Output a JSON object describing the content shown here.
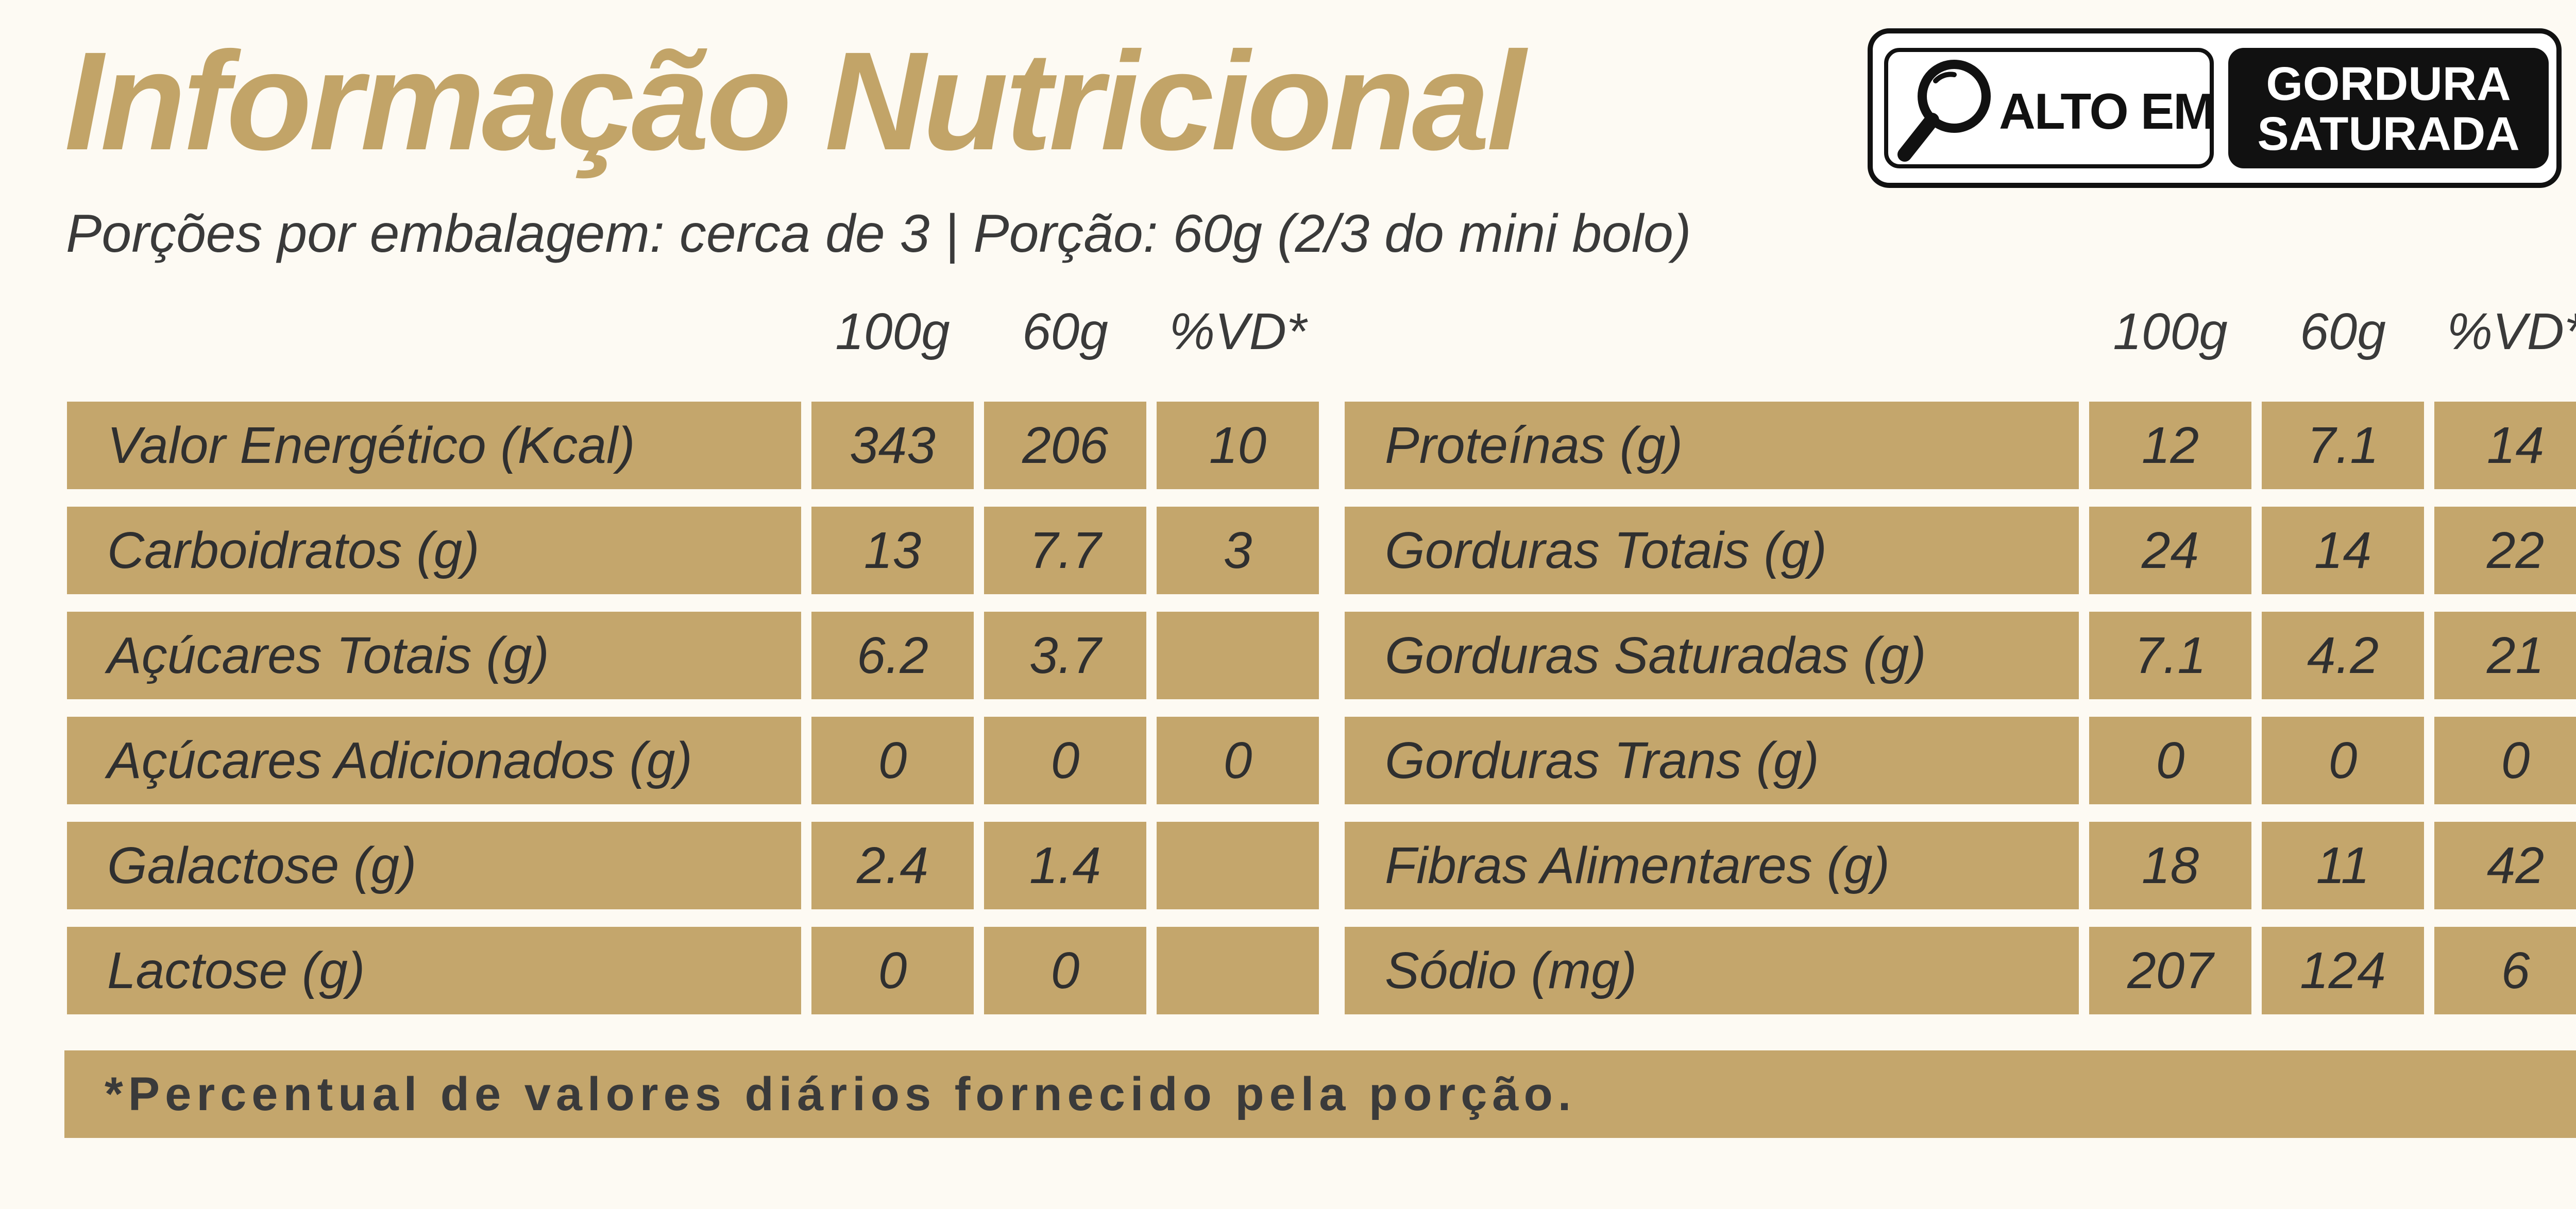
{
  "title": "Informação Nutricional",
  "subtitle": "Porções por embalagem: cerca de 3 | Porção: 60g (2/3 do mini bolo)",
  "seal": {
    "left_text": "ALTO EM",
    "right_line1": "GORDURA",
    "right_line2": "SATURADA",
    "icon": "magnifier-icon"
  },
  "headers": {
    "left": [
      "100g",
      "60g",
      "%VD*"
    ],
    "right": [
      "100g",
      "60g",
      "%VD*"
    ]
  },
  "left_rows": [
    {
      "label": "Valor Energético (Kcal)",
      "v100": "343",
      "v60": "206",
      "vd": "10"
    },
    {
      "label": "Carboidratos (g)",
      "v100": "13",
      "v60": "7.7",
      "vd": "3"
    },
    {
      "label": "Açúcares Totais (g)",
      "v100": "6.2",
      "v60": "3.7",
      "vd": ""
    },
    {
      "label": "Açúcares Adicionados (g)",
      "v100": "0",
      "v60": "0",
      "vd": "0"
    },
    {
      "label": "Galactose (g)",
      "v100": "2.4",
      "v60": "1.4",
      "vd": ""
    },
    {
      "label": "Lactose (g)",
      "v100": "0",
      "v60": "0",
      "vd": ""
    }
  ],
  "right_rows": [
    {
      "label": "Proteínas (g)",
      "v100": "12",
      "v60": "7.1",
      "vd": "14"
    },
    {
      "label": "Gorduras Totais (g)",
      "v100": "24",
      "v60": "14",
      "vd": "22"
    },
    {
      "label": "Gorduras Saturadas (g)",
      "v100": "7.1",
      "v60": "4.2",
      "vd": "21"
    },
    {
      "label": "Gorduras Trans (g)",
      "v100": "0",
      "v60": "0",
      "vd": "0"
    },
    {
      "label": "Fibras Alimentares (g)",
      "v100": "18",
      "v60": "11",
      "vd": "42"
    },
    {
      "label": "Sódio (mg)",
      "v100": "207",
      "v60": "124",
      "vd": "6"
    }
  ],
  "footnote": "*Percentual de valores diários fornecido pela porção.",
  "colors": {
    "accent": "#c4a66c",
    "title": "#c2a468",
    "background": "#fdfaf3"
  }
}
